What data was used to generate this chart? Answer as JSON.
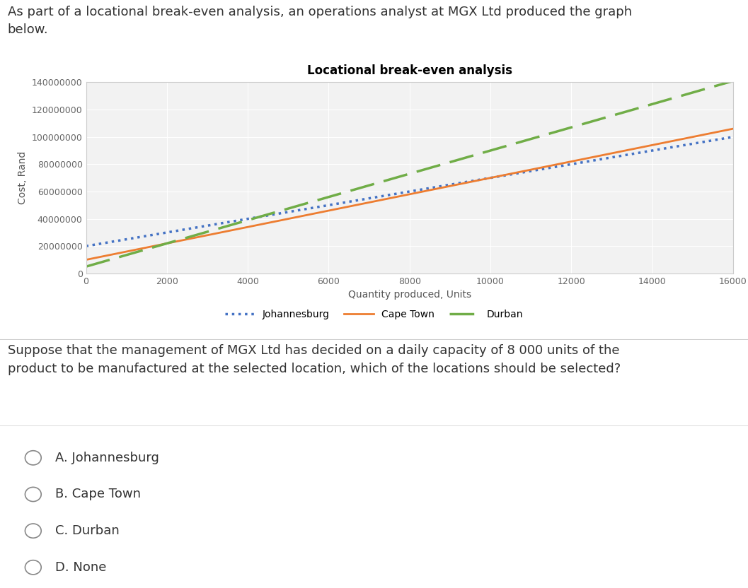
{
  "title": "Locational break-even analysis",
  "xlabel": "Quantity produced, Units",
  "ylabel": "Cost, Rand",
  "header_text": "As part of a locational break-even analysis, an operations analyst at MGX Ltd produced the graph\nbelow.",
  "question_text": "Suppose that the management of MGX Ltd has decided on a daily capacity of 8 000 units of the\nproduct to be manufactured at the selected location, which of the locations should be selected?",
  "options": [
    "A. Johannesburg",
    "B. Cape Town",
    "C. Durban",
    "D. None"
  ],
  "xlim": [
    0,
    16000
  ],
  "ylim": [
    0,
    140000000
  ],
  "xticks": [
    0,
    2000,
    4000,
    6000,
    8000,
    10000,
    12000,
    14000,
    16000
  ],
  "yticks": [
    0,
    20000000,
    40000000,
    60000000,
    80000000,
    100000000,
    120000000,
    140000000
  ],
  "johannesburg": {
    "fixed": 20000000,
    "variable": 5000,
    "color": "#4472C4",
    "style": "dotted",
    "linewidth": 2.5
  },
  "cape_town": {
    "fixed": 10000000,
    "variable": 6000,
    "color": "#ED7D31",
    "style": "solid",
    "linewidth": 2.0
  },
  "durban": {
    "fixed": 5000000,
    "variable": 8500,
    "color": "#70AD47",
    "style": "dashed",
    "linewidth": 2.5
  },
  "background_color": "#FFFFFF",
  "plot_bg_color": "#F2F2F2",
  "grid_color": "#FFFFFF",
  "title_fontsize": 12,
  "axis_label_fontsize": 10,
  "tick_fontsize": 9,
  "legend_fontsize": 10,
  "text_color": "#333333"
}
